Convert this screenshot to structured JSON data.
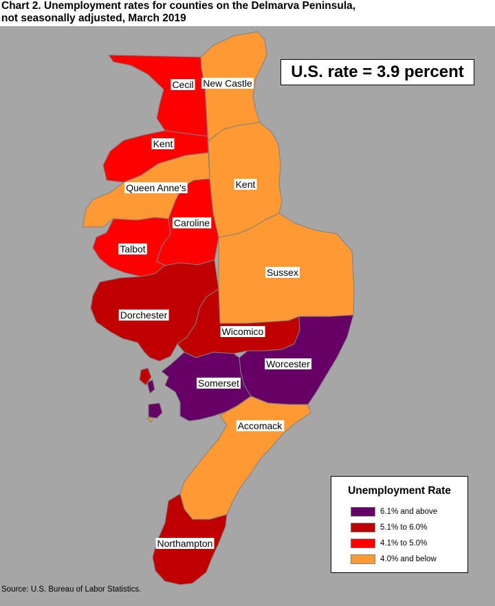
{
  "title": {
    "line1": "Chart 2. Unemployment rates for counties on the Delmarva Peninsula,",
    "line2": "not seasonally adjusted, March 2019"
  },
  "us_rate": "U.S. rate = 3.9 percent",
  "colors": {
    "background": "#a6a6a6",
    "rate_6_1_above": "#660066",
    "rate_5_1_to_6_0": "#c00000",
    "rate_4_1_to_5_0": "#ff0000",
    "rate_4_0_below": "#ff9933"
  },
  "legend": {
    "title": "Unemployment Rate",
    "items": [
      {
        "label": "6.1% and above",
        "color": "#660066"
      },
      {
        "label": "5.1% to 6.0%",
        "color": "#c00000"
      },
      {
        "label": "4.1% to 5.0%",
        "color": "#ff0000"
      },
      {
        "label": "4.0% and below",
        "color": "#ff9933"
      }
    ]
  },
  "counties": [
    {
      "name": "Cecil",
      "category": "4.1% to 5.0%",
      "color": "#ff0000"
    },
    {
      "name": "New Castle",
      "category": "4.0% and below",
      "color": "#ff9933"
    },
    {
      "name": "Kent",
      "category": "4.1% to 5.0%",
      "color": "#ff0000"
    },
    {
      "name": "Queen Anne's",
      "category": "4.0% and below",
      "color": "#ff9933"
    },
    {
      "name": "Kent",
      "category": "4.0% and below",
      "color": "#ff9933"
    },
    {
      "name": "Caroline",
      "category": "4.1% to 5.0%",
      "color": "#ff0000"
    },
    {
      "name": "Talbot",
      "category": "4.1% to 5.0%",
      "color": "#ff0000"
    },
    {
      "name": "Sussex",
      "category": "4.0% and below",
      "color": "#ff9933"
    },
    {
      "name": "Dorchester",
      "category": "5.1% to 6.0%",
      "color": "#c00000"
    },
    {
      "name": "Wicomico",
      "category": "5.1% to 6.0%",
      "color": "#c00000"
    },
    {
      "name": "Worcester",
      "category": "6.1% and above",
      "color": "#660066"
    },
    {
      "name": "Somerset",
      "category": "6.1% and above",
      "color": "#660066"
    },
    {
      "name": "Accomack",
      "category": "4.0% and below",
      "color": "#ff9933"
    },
    {
      "name": "Northampton",
      "category": "5.1% to 6.0%",
      "color": "#c00000"
    }
  ],
  "source": "Source: U.S. Bureau of Labor Statistics."
}
